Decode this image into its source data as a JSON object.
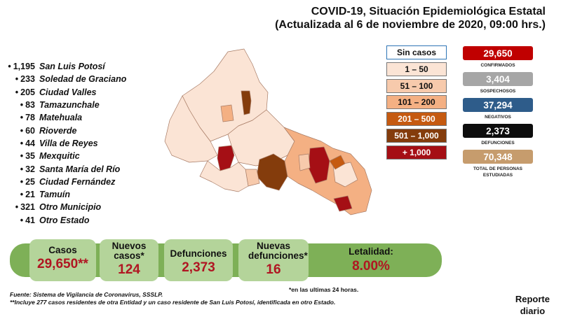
{
  "header": {
    "line1": "COVID-19, Situación Epidemiológica Estatal",
    "line2": "(Actualizada al 6 de noviembre de 2020, 09:00 hrs.)"
  },
  "municipios": [
    {
      "count": "1,195",
      "name": "San Luis Potosí"
    },
    {
      "count": "233",
      "name": "Soledad de Graciano"
    },
    {
      "count": "205",
      "name": "Ciudad Valles"
    },
    {
      "count": "83",
      "name": "Tamazunchale"
    },
    {
      "count": "78",
      "name": "Matehuala"
    },
    {
      "count": "60",
      "name": "Rioverde"
    },
    {
      "count": "44",
      "name": "Villa de Reyes"
    },
    {
      "count": "35",
      "name": "Mexquitic"
    },
    {
      "count": "32",
      "name": "Santa María del Río"
    },
    {
      "count": "25",
      "name": "Ciudad Fernández"
    },
    {
      "count": "21",
      "name": "Tamuín"
    },
    {
      "count": "321",
      "name": "Otro Municipio"
    },
    {
      "count": "41",
      "name": "Otro Estado"
    }
  ],
  "legend": [
    {
      "label": "Sin casos",
      "color": "#ffffff"
    },
    {
      "label": "1 – 50",
      "color": "#fbe4d5"
    },
    {
      "label": "51 – 100",
      "color": "#f7caac"
    },
    {
      "label": "101 – 200",
      "color": "#f4b083"
    },
    {
      "label": "201 – 500",
      "color": "#c55a11"
    },
    {
      "label": "501 – 1,000",
      "color": "#843c0c"
    },
    {
      "label": "+ 1,000",
      "color": "#a50f15"
    }
  ],
  "stats": [
    {
      "value": "29,650",
      "label": "CONFIRMADOS",
      "color": "#c00000"
    },
    {
      "value": "3,404",
      "label": "SOSPECHOSOS",
      "color": "#a6a6a6"
    },
    {
      "value": "37,294",
      "label": "NEGATIVOS",
      "color": "#2e5c8a"
    },
    {
      "value": "2,373",
      "label": "DEFUNCIONES",
      "color": "#0d0d0d"
    },
    {
      "value": "70,348",
      "label": "TOTAL DE PERSONAS ESTUDIADAS",
      "color": "#c69c6d"
    }
  ],
  "banner": {
    "casos": {
      "label": "Casos",
      "value": "29,650**"
    },
    "nuevos_casos": {
      "label": "Nuevos casos*",
      "value": "124"
    },
    "defunciones": {
      "label": "Defunciones",
      "value": "2,373"
    },
    "nuevas_defunciones": {
      "label": "Nuevas defunciones*",
      "value": "16"
    },
    "letalidad": {
      "label": "Letalidad:",
      "value": "8.00%"
    }
  },
  "footer": {
    "fuente": "Fuente: Sistema de Vigilancia de Coronavirus, SSSLP.",
    "nota2": "**Incluye 277 casos residentes de otra Entidad y un caso residente de San Luis Potosí, identificada en otro Estado.",
    "nota1": "*en las ultimas 24 horas.",
    "reporte_l1": "Reporte",
    "reporte_l2": "diario"
  }
}
